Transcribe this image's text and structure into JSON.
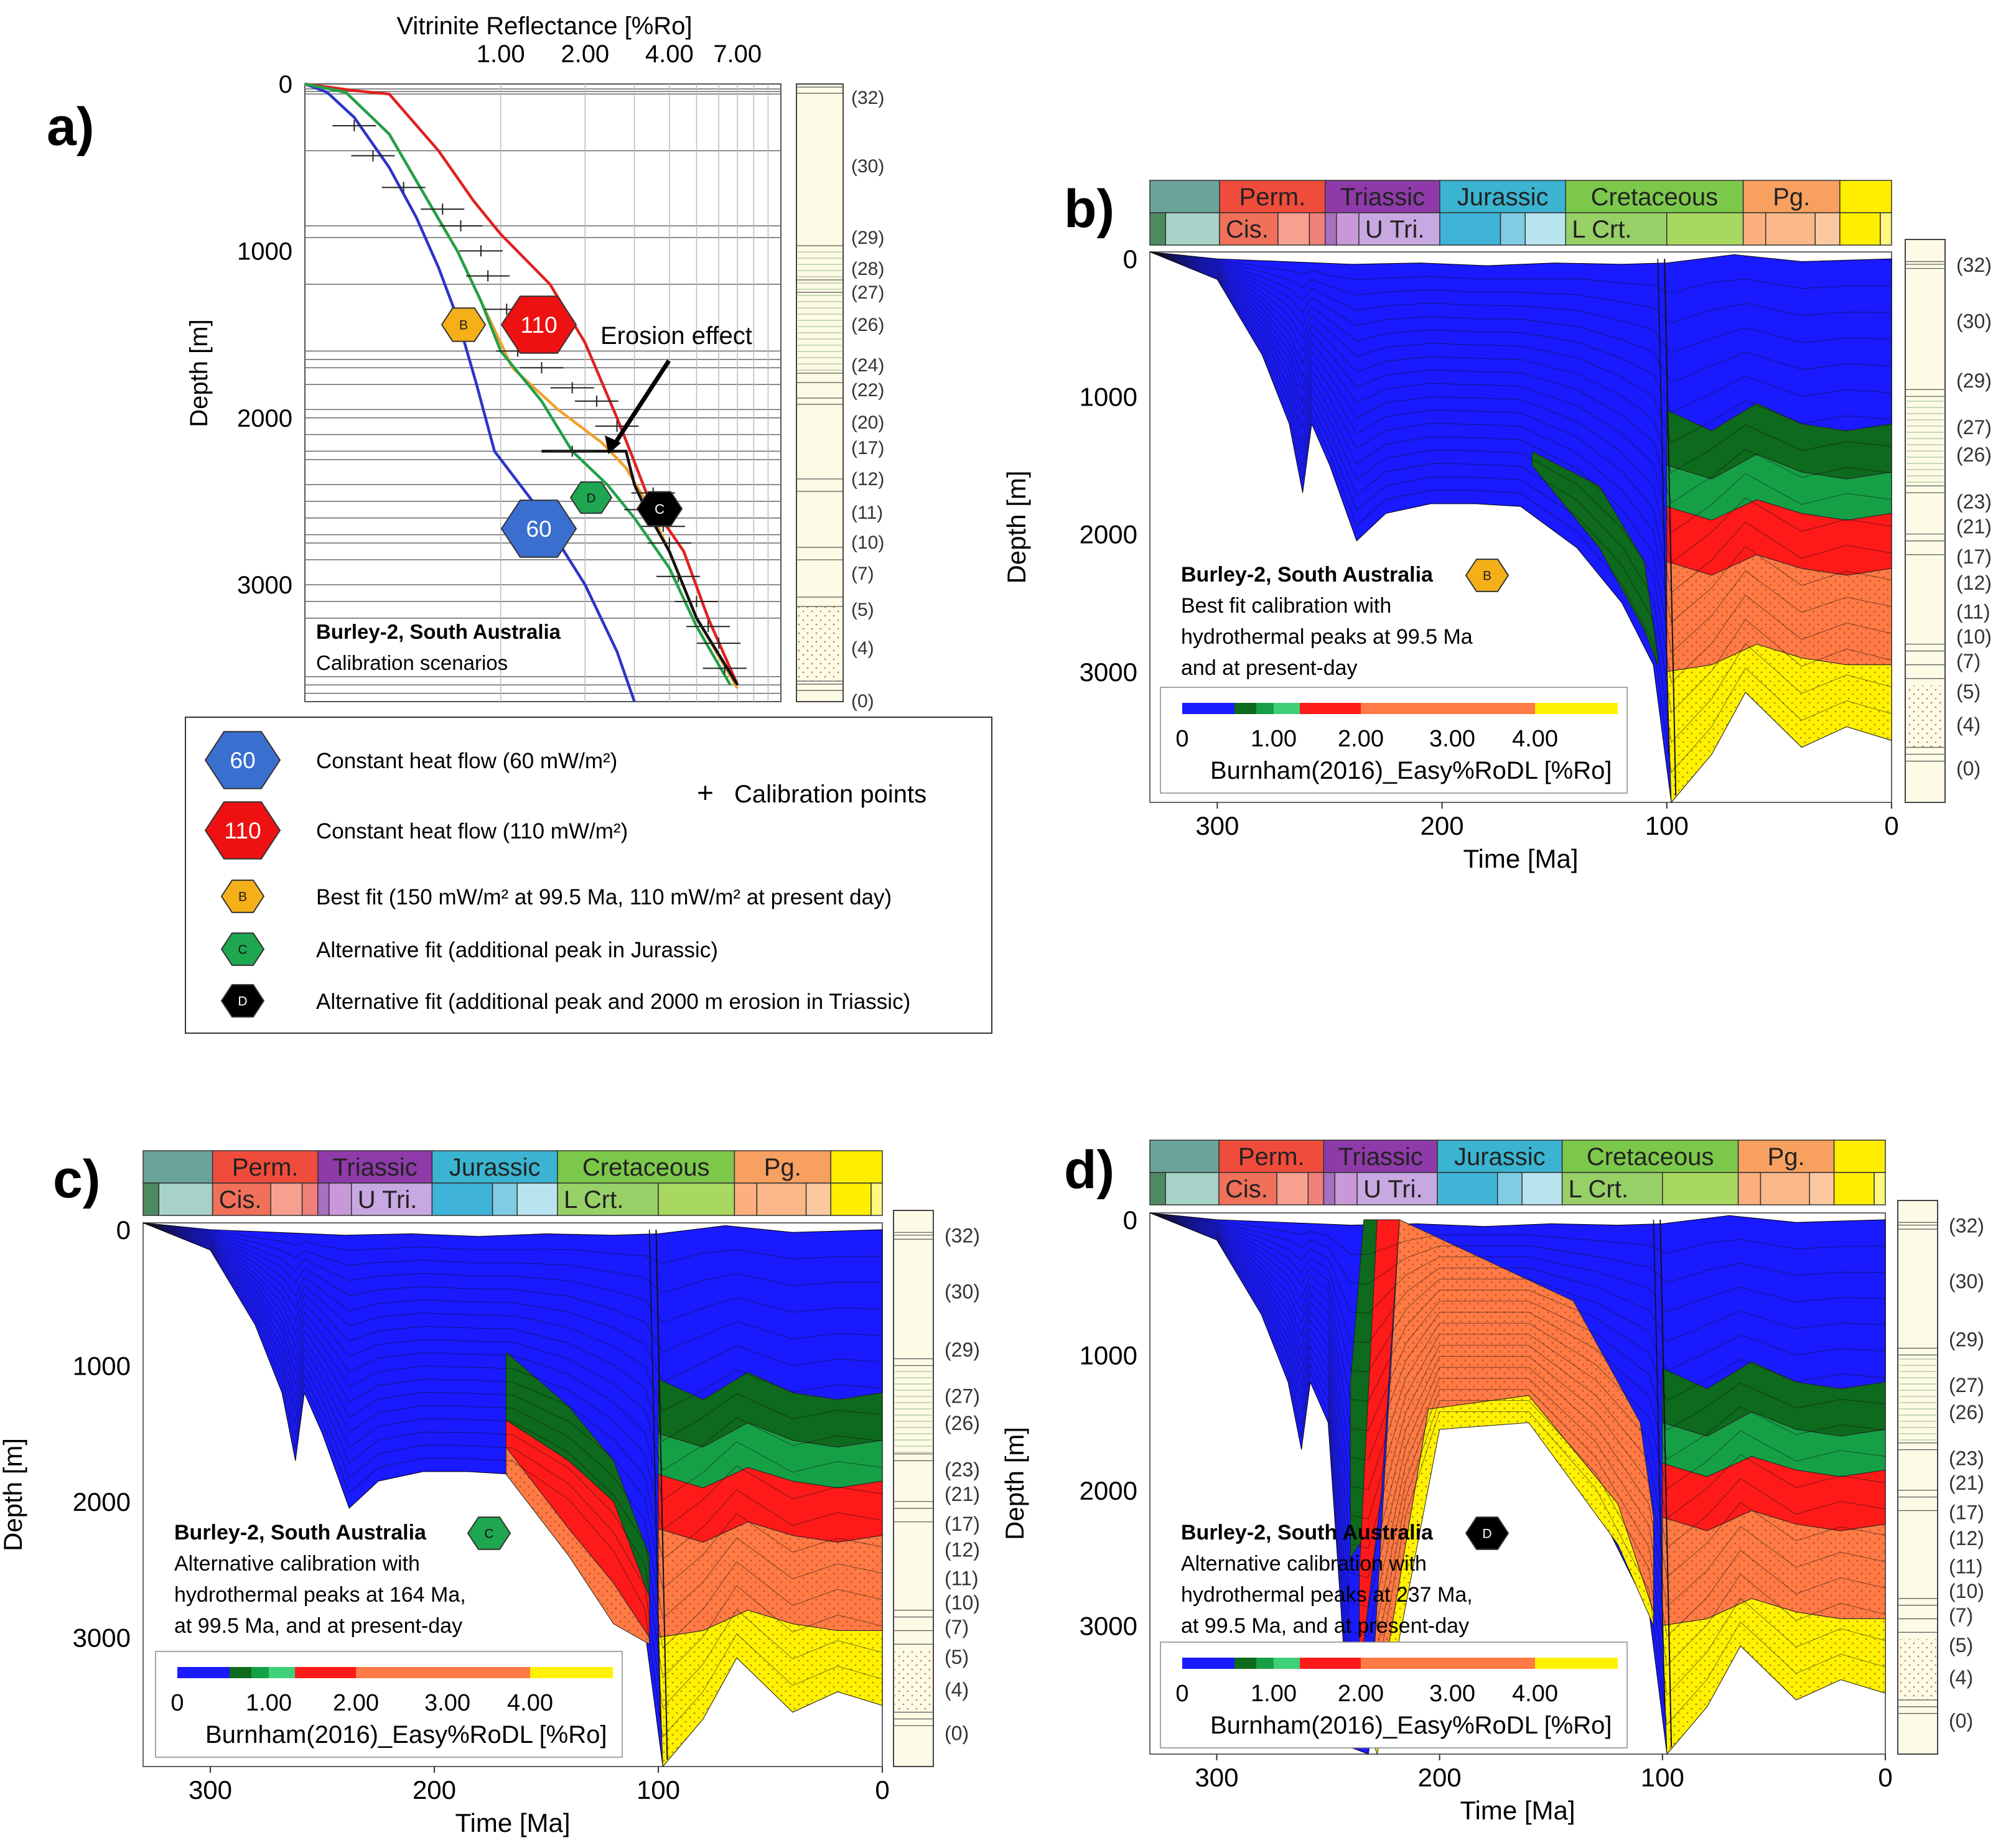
{
  "colors": {
    "blue": "#1a1aff",
    "dgreen": "#0e6a1c",
    "green": "#16a046",
    "lgreen": "#3fd07a",
    "red": "#ff1a1a",
    "orange": "#ff7a45",
    "yellow": "#fff200",
    "curve60": "#2b35c8",
    "curve110": "#e02020",
    "curveB": "#f0a030",
    "curveC": "#22a04a",
    "curveD": "#111111"
  },
  "layers": [
    "(32)",
    "(30)",
    "(29)",
    "(28)",
    "(27)",
    "(26)",
    "(24)",
    "(23)",
    "(22)",
    "(21)",
    "(20)",
    "(17)",
    "(12)",
    "(11)",
    "(10)",
    "(7)",
    "(5)",
    "(4)",
    "(0)"
  ],
  "timescale": {
    "periods": [
      "Perm.",
      "Triassic",
      "Jurassic",
      "Cretaceous",
      "Pg."
    ],
    "epochs": [
      "Cis.",
      "U Tri.",
      "L Crt."
    ]
  },
  "colorbar": {
    "ticks": [
      "0",
      "1.00",
      "2.00",
      "3.00",
      "4.00"
    ],
    "label": "Burnham(2016)_Easy%RoDL [%Ro]"
  },
  "chart_data": [
    {
      "panel": "a)",
      "type": "line",
      "title": "Vitrinite Reflectance [%Ro]",
      "xlabel": "Vitrinite Reflectance [%Ro]",
      "ylabel": "Depth [m]",
      "xscale": "log",
      "xlim": [
        0.2,
        10
      ],
      "ylim": [
        3700,
        0
      ],
      "xticks": [
        "1.00",
        "2.00",
        "4.00",
        "7.00"
      ],
      "yticks": [
        "0",
        "1000",
        "2000",
        "3000"
      ],
      "series": [
        {
          "name": "60",
          "color": "curve60",
          "points": [
            [
              0.2,
              0
            ],
            [
              0.24,
              50
            ],
            [
              0.3,
              200
            ],
            [
              0.4,
              500
            ],
            [
              0.5,
              800
            ],
            [
              0.6,
              1100
            ],
            [
              0.7,
              1400
            ],
            [
              0.82,
              1800
            ],
            [
              0.95,
              2200
            ],
            [
              1.3,
              2500
            ],
            [
              2,
              3000
            ],
            [
              2.6,
              3400
            ],
            [
              3,
              3700
            ]
          ]
        },
        {
          "name": "110",
          "color": "curve110",
          "points": [
            [
              0.2,
              0
            ],
            [
              0.3,
              40
            ],
            [
              0.4,
              60
            ],
            [
              0.6,
              400
            ],
            [
              0.8,
              700
            ],
            [
              1.0,
              900
            ],
            [
              1.5,
              1200
            ],
            [
              2.0,
              1550
            ],
            [
              2.6,
              2000
            ],
            [
              2.9,
              2200
            ],
            [
              3.4,
              2500
            ],
            [
              4.5,
              2800
            ],
            [
              5.5,
              3200
            ],
            [
              7,
              3600
            ]
          ]
        },
        {
          "name": "B",
          "color": "curveB",
          "points": [
            [
              0.2,
              0
            ],
            [
              0.28,
              50
            ],
            [
              0.4,
              300
            ],
            [
              0.55,
              700
            ],
            [
              0.7,
              1000
            ],
            [
              0.85,
              1300
            ],
            [
              1.1,
              1700
            ],
            [
              1.6,
              1950
            ],
            [
              2.3,
              2150
            ],
            [
              2.8,
              2300
            ],
            [
              3.3,
              2500
            ],
            [
              4,
              2800
            ],
            [
              5,
              3200
            ],
            [
              7,
              3620
            ]
          ]
        },
        {
          "name": "C",
          "color": "curveC",
          "points": [
            [
              0.2,
              0
            ],
            [
              0.28,
              50
            ],
            [
              0.4,
              300
            ],
            [
              0.55,
              700
            ],
            [
              0.7,
              1000
            ],
            [
              0.85,
              1300
            ],
            [
              1.0,
              1600
            ],
            [
              1.4,
              1900
            ],
            [
              1.8,
              2200
            ],
            [
              2.4,
              2400
            ],
            [
              3,
              2600
            ],
            [
              4,
              2900
            ],
            [
              5,
              3250
            ],
            [
              6.6,
              3600
            ]
          ]
        },
        {
          "name": "D",
          "color": "curveD",
          "points": [
            [
              1.4,
              2200
            ],
            [
              2.8,
              2200
            ],
            [
              3.0,
              2400
            ],
            [
              3.3,
              2550
            ],
            [
              4,
              2800
            ],
            [
              5,
              3200
            ],
            [
              7,
              3600
            ]
          ]
        }
      ],
      "measured_points": [
        [
          0.3,
          250
        ],
        [
          0.35,
          430
        ],
        [
          0.45,
          620
        ],
        [
          0.62,
          750
        ],
        [
          0.72,
          850
        ],
        [
          0.85,
          1000
        ],
        [
          0.9,
          1150
        ],
        [
          1.05,
          1350
        ],
        [
          1.15,
          1600
        ],
        [
          1.4,
          1700
        ],
        [
          1.8,
          1820
        ],
        [
          2.2,
          1900
        ],
        [
          2.6,
          2050
        ],
        [
          1.8,
          2200
        ],
        [
          3.5,
          2450
        ],
        [
          3.3,
          2550
        ],
        [
          3.8,
          2650
        ],
        [
          4,
          2750
        ],
        [
          4.3,
          2950
        ],
        [
          5,
          3100
        ],
        [
          5.5,
          3250
        ],
        [
          6,
          3350
        ],
        [
          6.3,
          3500
        ]
      ],
      "annotations": [
        "Erosion effect"
      ],
      "box_title": "Burley-2, South Australia",
      "box_subtitle": "Calibration scenarios",
      "legend": [
        {
          "marker": "60",
          "text": "Constant heat flow (60 mW/m²)"
        },
        {
          "marker": "110",
          "text": "Constant heat flow (110 mW/m²)"
        },
        {
          "marker": "B",
          "text": "Best fit (150 mW/m² at 99.5 Ma, 110 mW/m² at present day)"
        },
        {
          "marker": "C",
          "text": "Alternative fit (additional peak in Jurassic)"
        },
        {
          "marker": "D",
          "text": "Alternative fit (additional peak and 2000 m erosion  in Triassic)"
        },
        {
          "marker": "+",
          "text": "Calibration points"
        }
      ]
    },
    {
      "panel": "b)",
      "type": "area",
      "title": "Burley-2, South Australia",
      "xlabel": "Time [Ma]",
      "ylabel": "Depth [m]",
      "xlim": [
        330,
        0
      ],
      "ylim": [
        3950,
        -50
      ],
      "xticks": [
        "300",
        "200",
        "100",
        "0"
      ],
      "yticks": [
        "0",
        "1000",
        "2000",
        "3000"
      ],
      "badge": "B",
      "caption": [
        "Best fit calibration with",
        "hydrothermal peaks at 99.5 Ma",
        "and at present-day"
      ]
    },
    {
      "panel": "c)",
      "type": "area",
      "title": "Burley-2, South Australia",
      "xlabel": "Time [Ma]",
      "ylabel": "Depth [m]",
      "xlim": [
        330,
        0
      ],
      "ylim": [
        3950,
        -50
      ],
      "xticks": [
        "300",
        "200",
        "100",
        "0"
      ],
      "yticks": [
        "0",
        "1000",
        "2000",
        "3000"
      ],
      "badge": "C",
      "caption": [
        "Alternative calibration with",
        "hydrothermal peaks at 164 Ma,",
        "at 99.5 Ma, and at present-day"
      ]
    },
    {
      "panel": "d)",
      "type": "area",
      "title": "Burley-2, South Australia",
      "xlabel": "Time [Ma]",
      "ylabel": "Depth [m]",
      "xlim": [
        330,
        0
      ],
      "ylim": [
        3950,
        -50
      ],
      "xticks": [
        "300",
        "200",
        "100",
        "0"
      ],
      "yticks": [
        "0",
        "1000",
        "2000",
        "3000"
      ],
      "badge": "D",
      "caption": [
        "Alternative calibration with",
        "hydrothermal peaks at 237 Ma,",
        "at 99.5 Ma, and at present-day"
      ]
    }
  ]
}
